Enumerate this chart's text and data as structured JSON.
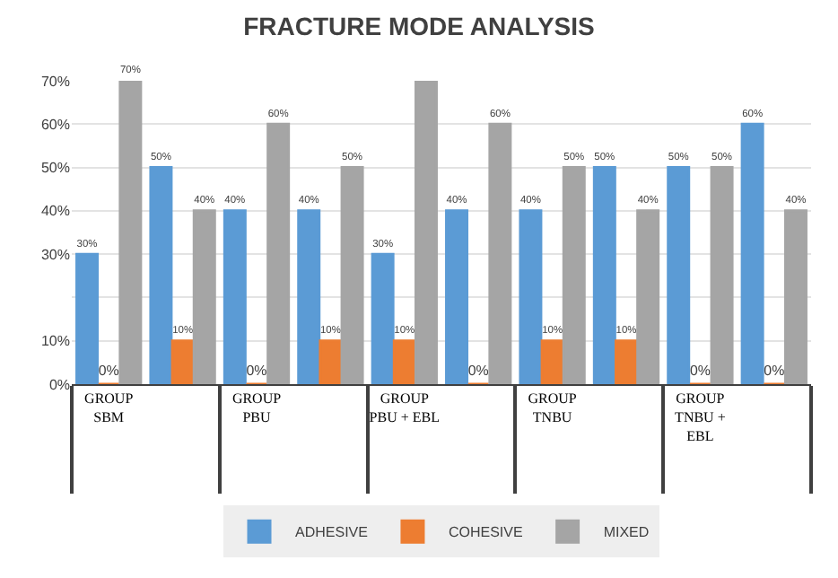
{
  "chart_data": {
    "type": "bar",
    "title": "FRACTURE MODE ANALYSIS",
    "categories": [
      "GROUP\nSBM",
      null,
      "GROUP\nPBU",
      null,
      "GROUP\nPBU + EBL",
      null,
      "GROUP\nTNBU",
      null,
      "GROUP\nTNBU +\nEBL",
      null
    ],
    "series": [
      {
        "name": "ADHESIVE",
        "color": "#5b9bd5",
        "values": [
          30,
          50,
          40,
          40,
          30,
          40,
          40,
          50,
          50,
          60
        ],
        "value_labels": [
          "30%",
          "50%",
          "40%",
          "40%",
          "30%",
          "40%",
          "40%",
          "50%",
          "50%",
          "60%"
        ]
      },
      {
        "name": "COHESIVE",
        "color": "#ed7d31",
        "values": [
          0,
          10,
          0,
          10,
          10,
          0,
          10,
          10,
          0,
          0
        ],
        "value_labels": [
          "0%",
          "10%",
          "0%",
          "10%",
          "10%",
          "0%",
          "10%",
          "10%",
          "0%",
          "0%"
        ]
      },
      {
        "name": "MIXED",
        "color": "#a5a5a5",
        "values": [
          70,
          40,
          60,
          50,
          70,
          60,
          50,
          40,
          50,
          40
        ],
        "value_labels": [
          "70%",
          "40%",
          "60%",
          "50%",
          null,
          "60%",
          "50%",
          "40%",
          "50%",
          "40%"
        ]
      }
    ],
    "ylim": [
      0,
      70
    ],
    "yticks": [
      {
        "value": 0,
        "label": "0%"
      },
      {
        "value": 10,
        "label": "10%"
      },
      {
        "value": 20,
        "label": null
      },
      {
        "value": 30,
        "label": "30%"
      },
      {
        "value": 40,
        "label": "40%"
      },
      {
        "value": 50,
        "label": "50%"
      },
      {
        "value": 60,
        "label": "60%"
      },
      {
        "value": 70,
        "label": "70%"
      }
    ],
    "grid": "y",
    "legend": "bottom"
  }
}
